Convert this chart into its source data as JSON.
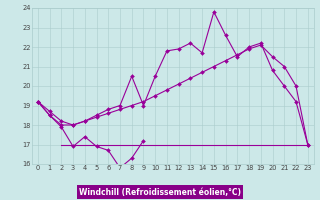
{
  "title": "",
  "xlabel": "Windchill (Refroidissement éolien,°C)",
  "x": [
    0,
    1,
    2,
    3,
    4,
    5,
    6,
    7,
    8,
    9,
    10,
    11,
    12,
    13,
    14,
    15,
    16,
    17,
    18,
    19,
    20,
    21,
    22,
    23
  ],
  "line1_x": [
    0,
    1,
    2,
    3,
    4,
    5,
    6,
    7,
    8,
    9
  ],
  "line1_y": [
    19.2,
    18.5,
    17.9,
    16.9,
    17.4,
    16.9,
    16.7,
    15.8,
    16.3,
    17.2
  ],
  "line2_x": [
    0,
    1,
    2,
    3,
    4,
    5,
    6,
    7,
    8,
    9,
    10,
    11,
    12,
    13,
    14,
    15,
    16,
    17,
    18,
    19,
    20,
    21,
    22,
    23
  ],
  "line2_y": [
    19.2,
    18.7,
    18.2,
    18.0,
    18.2,
    18.4,
    18.6,
    18.8,
    19.0,
    19.2,
    19.5,
    19.8,
    20.1,
    20.4,
    20.7,
    21.0,
    21.3,
    21.6,
    21.9,
    22.1,
    21.5,
    21.0,
    20.0,
    17.0
  ],
  "line3_x": [
    0,
    1,
    2,
    3,
    4,
    5,
    6,
    7,
    8,
    9,
    10,
    11,
    12,
    13,
    14,
    15,
    16,
    17,
    18,
    19,
    20,
    21,
    22,
    23
  ],
  "line3_y": [
    19.2,
    18.5,
    18.0,
    18.0,
    18.2,
    18.5,
    18.8,
    19.0,
    20.5,
    19.0,
    20.5,
    21.8,
    21.9,
    22.2,
    21.7,
    23.8,
    22.6,
    21.5,
    22.0,
    22.2,
    20.8,
    20.0,
    19.2,
    17.0
  ],
  "line4_x": [
    2,
    3,
    4,
    5,
    6,
    7,
    8,
    9,
    10,
    11,
    12,
    13,
    14,
    15,
    16,
    17,
    18,
    19,
    20,
    21,
    22,
    23
  ],
  "line4_y": [
    17.0,
    17.0,
    17.0,
    17.0,
    17.0,
    17.0,
    17.0,
    17.0,
    17.0,
    17.0,
    17.0,
    17.0,
    17.0,
    17.0,
    17.0,
    17.0,
    17.0,
    17.0,
    17.0,
    17.0,
    17.0,
    17.0
  ],
  "ylim": [
    16,
    24
  ],
  "xlim_min": -0.5,
  "xlim_max": 23.5,
  "bg_color": "#cce8e8",
  "line_color": "#990099",
  "grid_color": "#aacccc",
  "xlabel_bg": "#880088",
  "tick_color": "#444444",
  "xlabel_fontsize": 5.5,
  "tick_fontsize": 4.8,
  "linewidth": 0.8,
  "markersize": 2.0
}
